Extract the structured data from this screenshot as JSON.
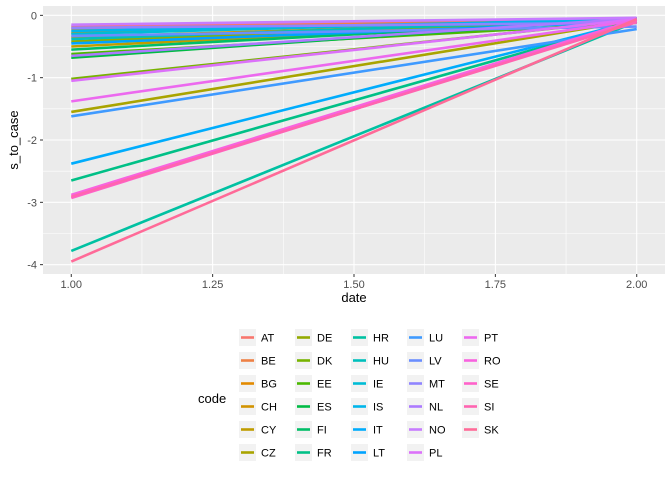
{
  "chart_data": {
    "type": "line",
    "title": "",
    "xlabel": "date",
    "ylabel": "s_to_case",
    "xlim": [
      0.95,
      2.05
    ],
    "ylim": [
      -4.15,
      0.15
    ],
    "x_ticks": [
      1.0,
      1.25,
      1.5,
      1.75,
      2.0
    ],
    "x_tick_labels": [
      "1.00",
      "1.25",
      "1.50",
      "1.75",
      "2.00"
    ],
    "y_ticks": [
      0,
      -1,
      -2,
      -3,
      -4
    ],
    "y_tick_labels": [
      "0",
      "-1",
      "-2",
      "-3",
      "-4"
    ],
    "grid": true,
    "legend": {
      "title": "code",
      "placement": "bottom",
      "columns": 5
    },
    "series": [
      {
        "name": "AT",
        "color": "#F8766D",
        "x": [
          1,
          2
        ],
        "y": [
          -0.18,
          -0.05
        ]
      },
      {
        "name": "BE",
        "color": "#EE8044",
        "x": [
          1,
          2
        ],
        "y": [
          -0.22,
          -0.06
        ]
      },
      {
        "name": "BG",
        "color": "#E28A00",
        "x": [
          1,
          2
        ],
        "y": [
          -0.28,
          -0.07
        ]
      },
      {
        "name": "CH",
        "color": "#D29300",
        "x": [
          1,
          2
        ],
        "y": [
          -0.35,
          -0.08
        ]
      },
      {
        "name": "CY",
        "color": "#BF9C00",
        "x": [
          1,
          2
        ],
        "y": [
          -0.5,
          -0.06
        ]
      },
      {
        "name": "CZ",
        "color": "#A9A400",
        "x": [
          1,
          2
        ],
        "y": [
          -1.55,
          -0.08
        ]
      },
      {
        "name": "DE",
        "color": "#93AA00",
        "x": [
          1,
          2
        ],
        "y": [
          -0.42,
          -0.05
        ]
      },
      {
        "name": "DK",
        "color": "#77B300",
        "x": [
          1,
          2
        ],
        "y": [
          -1.02,
          -0.07
        ]
      },
      {
        "name": "EE",
        "color": "#4BB800",
        "x": [
          1,
          2
        ],
        "y": [
          -0.62,
          -0.12
        ]
      },
      {
        "name": "ES",
        "color": "#00BB44",
        "x": [
          1,
          2
        ],
        "y": [
          -0.68,
          -0.05
        ]
      },
      {
        "name": "FI",
        "color": "#00BE67",
        "x": [
          1,
          2
        ],
        "y": [
          -0.55,
          -0.06
        ]
      },
      {
        "name": "FR",
        "color": "#00C086",
        "x": [
          1,
          2
        ],
        "y": [
          -2.65,
          -0.08
        ]
      },
      {
        "name": "HR",
        "color": "#00C1A2",
        "x": [
          1,
          2
        ],
        "y": [
          -3.78,
          -0.1
        ]
      },
      {
        "name": "HU",
        "color": "#00BFBC",
        "x": [
          1,
          2
        ],
        "y": [
          -0.38,
          -0.06
        ]
      },
      {
        "name": "IE",
        "color": "#00BCD5",
        "x": [
          1,
          2
        ],
        "y": [
          -0.3,
          -0.05
        ]
      },
      {
        "name": "IS",
        "color": "#00B5EB",
        "x": [
          1,
          2
        ],
        "y": [
          -0.25,
          -0.07
        ]
      },
      {
        "name": "IT",
        "color": "#00ACFC",
        "x": [
          1,
          2
        ],
        "y": [
          -2.38,
          -0.09
        ]
      },
      {
        "name": "LT",
        "color": "#00A3FF",
        "x": [
          1,
          2
        ],
        "y": [
          -0.45,
          -0.1
        ]
      },
      {
        "name": "LU",
        "color": "#3F9AFF",
        "x": [
          1,
          2
        ],
        "y": [
          -1.62,
          -0.22
        ]
      },
      {
        "name": "LV",
        "color": "#6A8EFF",
        "x": [
          1,
          2
        ],
        "y": [
          -0.33,
          -0.18
        ]
      },
      {
        "name": "MT",
        "color": "#8F84FF",
        "x": [
          1,
          2
        ],
        "y": [
          -0.2,
          -0.12
        ]
      },
      {
        "name": "NL",
        "color": "#AC7AFF",
        "x": [
          1,
          2
        ],
        "y": [
          -0.65,
          -0.05
        ]
      },
      {
        "name": "NO",
        "color": "#C77CFF",
        "x": [
          1,
          2
        ],
        "y": [
          -0.15,
          -0.04
        ]
      },
      {
        "name": "PL",
        "color": "#DC71FA",
        "x": [
          1,
          2
        ],
        "y": [
          -1.05,
          -0.06
        ]
      },
      {
        "name": "PT",
        "color": "#EC69EF",
        "x": [
          1,
          2
        ],
        "y": [
          -1.38,
          -0.08
        ]
      },
      {
        "name": "RO",
        "color": "#F863DF",
        "x": [
          1,
          2
        ],
        "y": [
          -2.88,
          -0.07
        ]
      },
      {
        "name": "SE",
        "color": "#FF61C9",
        "x": [
          1,
          2
        ],
        "y": [
          -2.93,
          -0.09
        ]
      },
      {
        "name": "SI",
        "color": "#FF64B0",
        "x": [
          1,
          2
        ],
        "y": [
          -2.91,
          -0.11
        ]
      },
      {
        "name": "SK",
        "color": "#FF6A98",
        "x": [
          1,
          2
        ],
        "y": [
          -3.95,
          -0.06
        ]
      }
    ]
  }
}
